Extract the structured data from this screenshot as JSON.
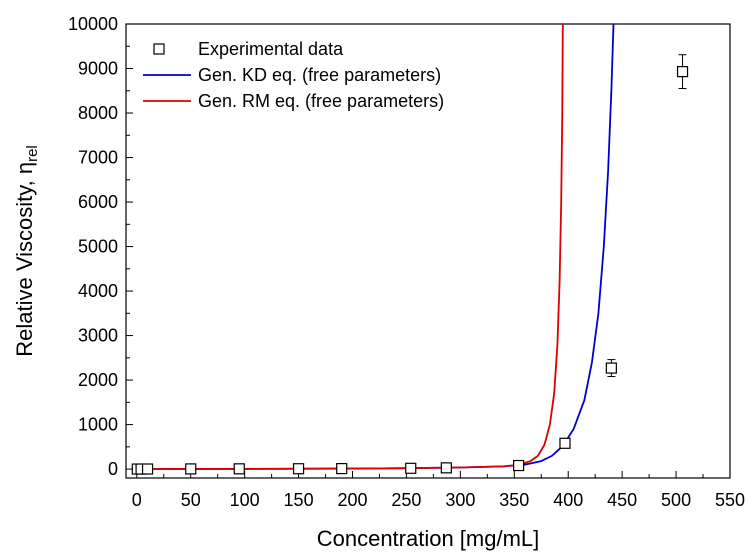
{
  "chart_data": {
    "type": "scatter",
    "xlabel": "Concentration [mg/mL]",
    "ylabel": {
      "main": "Relative Viscosity, η",
      "subscript": "rel"
    },
    "xlim": [
      -10,
      550
    ],
    "ylim": [
      -200,
      10000
    ],
    "x_ticks": [
      0,
      50,
      100,
      150,
      200,
      250,
      300,
      350,
      400,
      450,
      500,
      550
    ],
    "y_ticks": [
      0,
      1000,
      2000,
      3000,
      4000,
      5000,
      6000,
      7000,
      8000,
      9000,
      10000
    ],
    "grid": false,
    "legend_position": "top-left",
    "series": [
      {
        "name": "Experimental data",
        "kind": "points",
        "color": "#000000",
        "marker": "open-square",
        "points": [
          {
            "x": 0.5,
            "y": 1,
            "err": 6
          },
          {
            "x": 4,
            "y": 1,
            "err": 6
          },
          {
            "x": 10,
            "y": 2,
            "err": 6
          },
          {
            "x": 50,
            "y": 4,
            "err": 6
          },
          {
            "x": 95,
            "y": 6,
            "err": 6
          },
          {
            "x": 150,
            "y": 8,
            "err": 6
          },
          {
            "x": 190,
            "y": 11,
            "err": 6
          },
          {
            "x": 254,
            "y": 18,
            "err": 6
          },
          {
            "x": 287,
            "y": 28,
            "err": 6
          },
          {
            "x": 354,
            "y": 80,
            "err": 15
          },
          {
            "x": 397,
            "y": 580,
            "err": 35
          },
          {
            "x": 440,
            "y": 2270,
            "err": 190
          },
          {
            "x": 506,
            "y": 8930,
            "err": 380
          }
        ]
      },
      {
        "name": "Gen. KD eq. (free parameters)",
        "kind": "line",
        "color": "#0000cc",
        "points": [
          {
            "x": 0,
            "y": 1
          },
          {
            "x": 100,
            "y": 4
          },
          {
            "x": 200,
            "y": 12
          },
          {
            "x": 250,
            "y": 20
          },
          {
            "x": 300,
            "y": 36
          },
          {
            "x": 340,
            "y": 62
          },
          {
            "x": 360,
            "y": 100
          },
          {
            "x": 375,
            "y": 180
          },
          {
            "x": 385,
            "y": 300
          },
          {
            "x": 395,
            "y": 520
          },
          {
            "x": 405,
            "y": 900
          },
          {
            "x": 415,
            "y": 1550
          },
          {
            "x": 422,
            "y": 2400
          },
          {
            "x": 428,
            "y": 3500
          },
          {
            "x": 433,
            "y": 5000
          },
          {
            "x": 437,
            "y": 6700
          },
          {
            "x": 440,
            "y": 8500
          },
          {
            "x": 442,
            "y": 10000
          }
        ]
      },
      {
        "name": "Gen. RM eq. (free parameters)",
        "kind": "line",
        "color": "#dd0000",
        "points": [
          {
            "x": 0,
            "y": 1
          },
          {
            "x": 100,
            "y": 4
          },
          {
            "x": 200,
            "y": 12
          },
          {
            "x": 250,
            "y": 20
          },
          {
            "x": 300,
            "y": 36
          },
          {
            "x": 340,
            "y": 62
          },
          {
            "x": 355,
            "y": 100
          },
          {
            "x": 365,
            "y": 180
          },
          {
            "x": 372,
            "y": 300
          },
          {
            "x": 378,
            "y": 550
          },
          {
            "x": 383,
            "y": 1000
          },
          {
            "x": 387,
            "y": 1700
          },
          {
            "x": 390,
            "y": 2800
          },
          {
            "x": 392,
            "y": 4200
          },
          {
            "x": 393.5,
            "y": 6000
          },
          {
            "x": 394.5,
            "y": 8000
          },
          {
            "x": 395,
            "y": 10000
          }
        ]
      }
    ]
  }
}
